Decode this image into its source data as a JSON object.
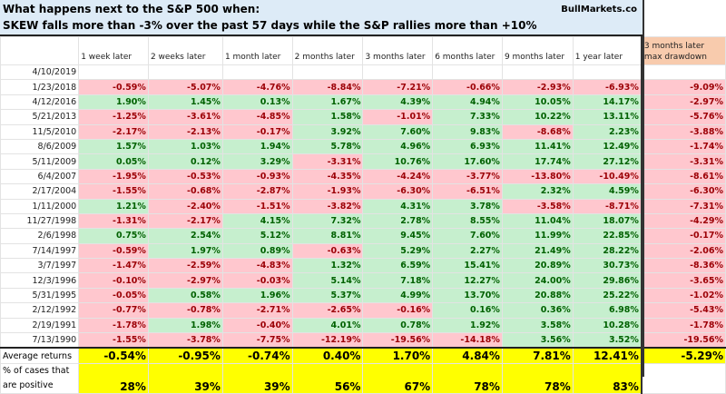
{
  "title_line1": "What happens next to the S&P 500 when:",
  "title_line2": "SKEW falls more than -3% over the past 57 days while the S&P rallies more than +10%",
  "brand": "BullMarkets.co",
  "columns": [
    "1 week later",
    "2 weeks later",
    "1 month later",
    "2 months later",
    "3 months later",
    "6 months later",
    "9 months later",
    "1 year later",
    "3 months later max drawdown"
  ],
  "rows": [
    {
      "date": "4/10/2019",
      "values": [
        "",
        "",
        "",
        "",
        "",
        "",
        "",
        "",
        ""
      ]
    },
    {
      "date": "1/23/2018",
      "values": [
        "-0.59%",
        "-5.07%",
        "-4.76%",
        "-8.84%",
        "-7.21%",
        "-0.66%",
        "-2.93%",
        "-6.93%",
        "-9.09%"
      ]
    },
    {
      "date": "4/12/2016",
      "values": [
        "1.90%",
        "1.45%",
        "0.13%",
        "1.67%",
        "4.39%",
        "4.94%",
        "10.05%",
        "14.17%",
        "-2.97%"
      ]
    },
    {
      "date": "5/21/2013",
      "values": [
        "-1.25%",
        "-3.61%",
        "-4.85%",
        "1.58%",
        "-1.01%",
        "7.33%",
        "10.22%",
        "13.11%",
        "-5.76%"
      ]
    },
    {
      "date": "11/5/2010",
      "values": [
        "-2.17%",
        "-2.13%",
        "-0.17%",
        "3.92%",
        "7.60%",
        "9.83%",
        "-8.68%",
        "2.23%",
        "-3.88%"
      ]
    },
    {
      "date": "8/6/2009",
      "values": [
        "1.57%",
        "1.03%",
        "1.94%",
        "5.78%",
        "4.96%",
        "6.93%",
        "11.41%",
        "12.49%",
        "-1.74%"
      ]
    },
    {
      "date": "5/11/2009",
      "values": [
        "0.05%",
        "0.12%",
        "3.29%",
        "-3.31%",
        "10.76%",
        "17.60%",
        "17.74%",
        "27.12%",
        "-3.31%"
      ]
    },
    {
      "date": "6/4/2007",
      "values": [
        "-1.95%",
        "-0.53%",
        "-0.93%",
        "-4.35%",
        "-4.24%",
        "-3.77%",
        "-13.80%",
        "-10.49%",
        "-8.61%"
      ]
    },
    {
      "date": "2/17/2004",
      "values": [
        "-1.55%",
        "-0.68%",
        "-2.87%",
        "-1.93%",
        "-6.30%",
        "-6.51%",
        "2.32%",
        "4.59%",
        "-6.30%"
      ]
    },
    {
      "date": "1/11/2000",
      "values": [
        "1.21%",
        "-2.40%",
        "-1.51%",
        "-3.82%",
        "4.31%",
        "3.78%",
        "-3.58%",
        "-8.71%",
        "-7.31%"
      ]
    },
    {
      "date": "11/27/1998",
      "values": [
        "-1.31%",
        "-2.17%",
        "4.15%",
        "7.32%",
        "2.78%",
        "8.55%",
        "11.04%",
        "18.07%",
        "-4.29%"
      ]
    },
    {
      "date": "2/6/1998",
      "values": [
        "0.75%",
        "2.54%",
        "5.12%",
        "8.81%",
        "9.45%",
        "7.60%",
        "11.99%",
        "22.85%",
        "-0.17%"
      ]
    },
    {
      "date": "7/14/1997",
      "values": [
        "-0.59%",
        "1.97%",
        "0.89%",
        "-0.63%",
        "5.29%",
        "2.27%",
        "21.49%",
        "28.22%",
        "-2.06%"
      ]
    },
    {
      "date": "3/7/1997",
      "values": [
        "-1.47%",
        "-2.59%",
        "-4.83%",
        "1.32%",
        "6.59%",
        "15.41%",
        "20.89%",
        "30.73%",
        "-8.36%"
      ]
    },
    {
      "date": "12/3/1996",
      "values": [
        "-0.10%",
        "-2.97%",
        "-0.03%",
        "5.14%",
        "7.18%",
        "12.27%",
        "24.00%",
        "29.86%",
        "-3.65%"
      ]
    },
    {
      "date": "5/31/1995",
      "values": [
        "-0.05%",
        "0.58%",
        "1.96%",
        "5.37%",
        "4.99%",
        "13.70%",
        "20.88%",
        "25.22%",
        "-1.02%"
      ]
    },
    {
      "date": "2/12/1992",
      "values": [
        "-0.77%",
        "-0.78%",
        "-2.71%",
        "-2.65%",
        "-0.16%",
        "0.16%",
        "0.36%",
        "6.98%",
        "-5.43%"
      ]
    },
    {
      "date": "2/19/1991",
      "values": [
        "-1.78%",
        "1.98%",
        "-0.40%",
        "4.01%",
        "0.78%",
        "1.92%",
        "3.58%",
        "10.28%",
        "-1.78%"
      ]
    },
    {
      "date": "7/13/1990",
      "values": [
        "-1.55%",
        "-3.78%",
        "-7.75%",
        "-12.19%",
        "-19.56%",
        "-14.18%",
        "3.56%",
        "3.52%",
        "-19.56%"
      ]
    }
  ],
  "average": {
    "label": "Average returns",
    "values": [
      "-0.54%",
      "-0.95%",
      "-0.74%",
      "0.40%",
      "1.70%",
      "4.84%",
      "7.81%",
      "12.41%",
      "-5.29%"
    ]
  },
  "positive": {
    "label_line1": "% of cases that",
    "label_line2": "are positive",
    "values": [
      "28%",
      "39%",
      "39%",
      "56%",
      "67%",
      "78%",
      "78%",
      "83%"
    ]
  }
}
